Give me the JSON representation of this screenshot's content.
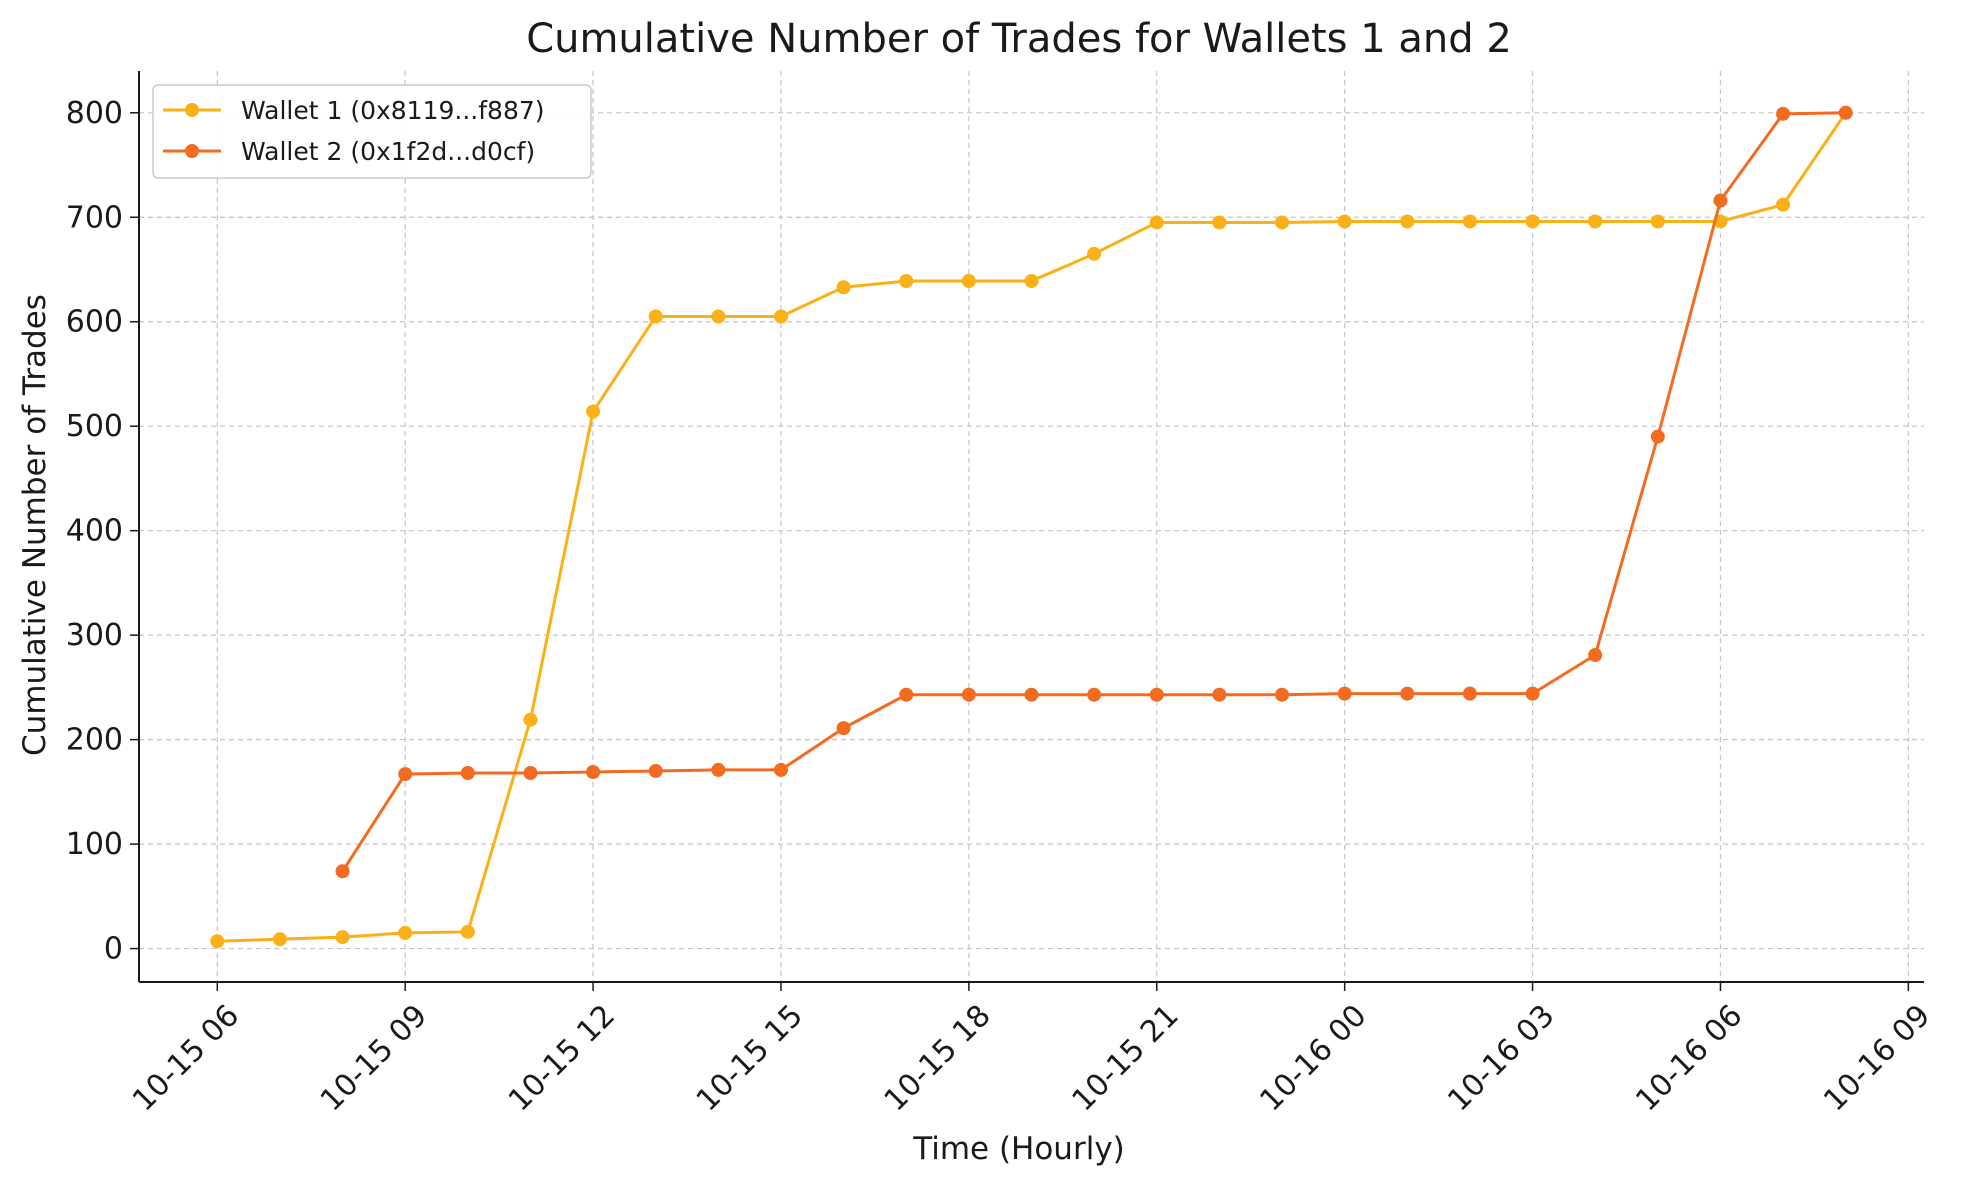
{
  "chart_data": {
    "type": "line",
    "title": "Cumulative Number of Trades for Wallets 1 and 2",
    "xlabel": "Time (Hourly)",
    "ylabel": "Cumulative Number of Trades",
    "grid": true,
    "legend_position": "top-left",
    "xlim": [
      "2024-10-15 04:45",
      "2024-10-16 09:15"
    ],
    "ylim": [
      -32,
      840
    ],
    "x_ticks": [
      "2024-10-15 06:00",
      "2024-10-15 09:00",
      "2024-10-15 12:00",
      "2024-10-15 15:00",
      "2024-10-15 18:00",
      "2024-10-15 21:00",
      "2024-10-16 00:00",
      "2024-10-16 03:00",
      "2024-10-16 06:00",
      "2024-10-16 09:00"
    ],
    "x_tick_labels": [
      "10-15 06",
      "10-15 09",
      "10-15 12",
      "10-15 15",
      "10-15 18",
      "10-15 21",
      "10-16 00",
      "10-16 03",
      "10-16 06",
      "10-16 09"
    ],
    "y_ticks": [
      0,
      100,
      200,
      300,
      400,
      500,
      600,
      700,
      800
    ],
    "y_tick_labels": [
      "0",
      "100",
      "200",
      "300",
      "400",
      "500",
      "600",
      "700",
      "800"
    ],
    "series": [
      {
        "name": "Wallet 1 (0x8119...f887)",
        "color": "#FBB017",
        "points": [
          [
            "2024-10-15 06:00",
            7
          ],
          [
            "2024-10-15 07:00",
            9
          ],
          [
            "2024-10-15 08:00",
            11
          ],
          [
            "2024-10-15 09:00",
            15
          ],
          [
            "2024-10-15 10:00",
            16
          ],
          [
            "2024-10-15 11:00",
            219
          ],
          [
            "2024-10-15 12:00",
            514
          ],
          [
            "2024-10-15 13:00",
            605
          ],
          [
            "2024-10-15 14:00",
            605
          ],
          [
            "2024-10-15 15:00",
            605
          ],
          [
            "2024-10-15 16:00",
            633
          ],
          [
            "2024-10-15 17:00",
            639
          ],
          [
            "2024-10-15 18:00",
            639
          ],
          [
            "2024-10-15 19:00",
            639
          ],
          [
            "2024-10-15 20:00",
            665
          ],
          [
            "2024-10-15 21:00",
            695
          ],
          [
            "2024-10-15 22:00",
            695
          ],
          [
            "2024-10-15 23:00",
            695
          ],
          [
            "2024-10-16 00:00",
            696
          ],
          [
            "2024-10-16 01:00",
            696
          ],
          [
            "2024-10-16 02:00",
            696
          ],
          [
            "2024-10-16 03:00",
            696
          ],
          [
            "2024-10-16 04:00",
            696
          ],
          [
            "2024-10-16 05:00",
            696
          ],
          [
            "2024-10-16 06:00",
            696
          ],
          [
            "2024-10-16 07:00",
            712
          ],
          [
            "2024-10-16 08:00",
            800
          ]
        ]
      },
      {
        "name": "Wallet 2 (0x1f2d...d0cf)",
        "color": "#F26B21",
        "points": [
          [
            "2024-10-15 08:00",
            74
          ],
          [
            "2024-10-15 09:00",
            167
          ],
          [
            "2024-10-15 10:00",
            168
          ],
          [
            "2024-10-15 11:00",
            168
          ],
          [
            "2024-10-15 12:00",
            169
          ],
          [
            "2024-10-15 13:00",
            170
          ],
          [
            "2024-10-15 14:00",
            171
          ],
          [
            "2024-10-15 15:00",
            171
          ],
          [
            "2024-10-15 16:00",
            211
          ],
          [
            "2024-10-15 17:00",
            243
          ],
          [
            "2024-10-15 18:00",
            243
          ],
          [
            "2024-10-15 19:00",
            243
          ],
          [
            "2024-10-15 20:00",
            243
          ],
          [
            "2024-10-15 21:00",
            243
          ],
          [
            "2024-10-15 22:00",
            243
          ],
          [
            "2024-10-15 23:00",
            243
          ],
          [
            "2024-10-16 00:00",
            244
          ],
          [
            "2024-10-16 01:00",
            244
          ],
          [
            "2024-10-16 02:00",
            244
          ],
          [
            "2024-10-16 03:00",
            244
          ],
          [
            "2024-10-16 04:00",
            281
          ],
          [
            "2024-10-16 05:00",
            490
          ],
          [
            "2024-10-16 06:00",
            716
          ],
          [
            "2024-10-16 07:00",
            799
          ],
          [
            "2024-10-16 08:00",
            800
          ]
        ]
      }
    ]
  }
}
